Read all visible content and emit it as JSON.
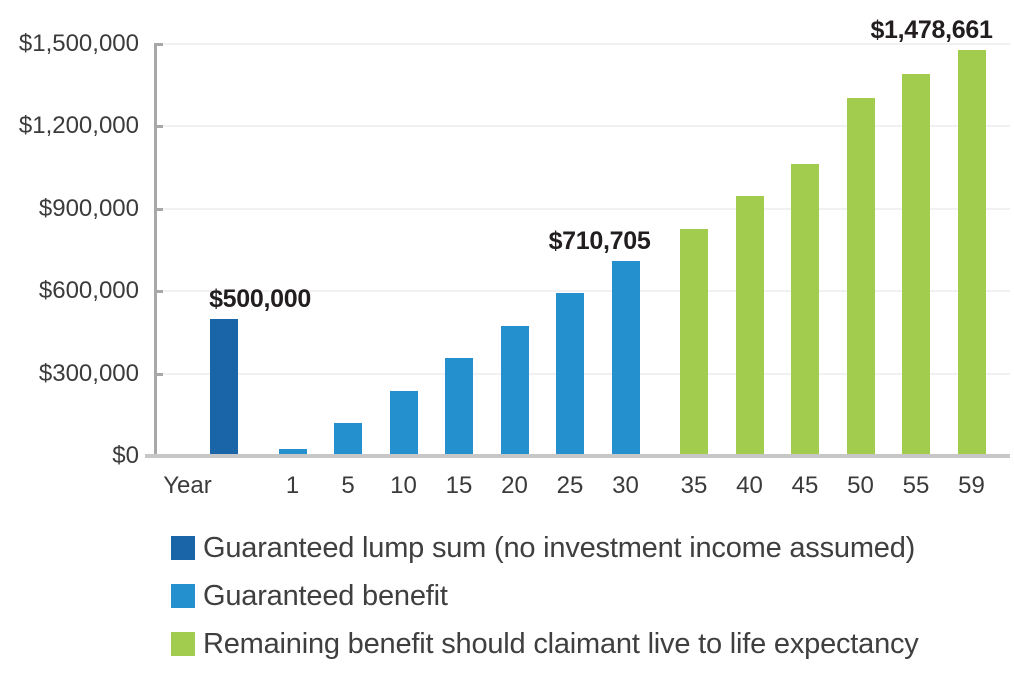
{
  "chart_data": {
    "type": "bar",
    "title": "",
    "xlabel": "Year",
    "ylabel": "",
    "ylim": [
      0,
      1500000
    ],
    "grid": true,
    "legend_position": "bottom-left",
    "y_ticks": [
      {
        "value": 0,
        "label": "$0"
      },
      {
        "value": 300000,
        "label": "$300,000"
      },
      {
        "value": 600000,
        "label": "$600,000"
      },
      {
        "value": 900000,
        "label": "$900,000"
      },
      {
        "value": 1200000,
        "label": "$1,200,000"
      },
      {
        "value": 1500000,
        "label": "$1,500,000"
      }
    ],
    "series": [
      {
        "name": "Guaranteed lump sum (no investment income assumed)",
        "color": "#1a65a8",
        "points": [
          {
            "x": "Year",
            "y": 500000,
            "label": "$500,000"
          }
        ]
      },
      {
        "name": "Guaranteed benefit",
        "color": "#2590ce",
        "points": [
          {
            "x": "1",
            "y": 23690,
            "label": null
          },
          {
            "x": "5",
            "y": 118451,
            "label": null
          },
          {
            "x": "10",
            "y": 236902,
            "label": null
          },
          {
            "x": "15",
            "y": 355353,
            "label": null
          },
          {
            "x": "20",
            "y": 473803,
            "label": null
          },
          {
            "x": "25",
            "y": 592254,
            "label": null
          },
          {
            "x": "30",
            "y": 710705,
            "label": "$710,705"
          }
        ]
      },
      {
        "name": "Remaining benefit should claimant live to life expectancy",
        "color": "#a2cc4e",
        "points": [
          {
            "x": "35",
            "y": 825000,
            "label": null
          },
          {
            "x": "40",
            "y": 947000,
            "label": null
          },
          {
            "x": "45",
            "y": 1064000,
            "label": null
          },
          {
            "x": "50",
            "y": 1305000,
            "label": null
          },
          {
            "x": "55",
            "y": 1390000,
            "label": null
          },
          {
            "x": "59",
            "y": 1478661,
            "label": "$1,478,661"
          }
        ]
      }
    ]
  },
  "legend": {
    "items": [
      {
        "label": "Guaranteed lump sum (no investment income assumed)",
        "color": "#1a65a8"
      },
      {
        "label": "Guaranteed benefit",
        "color": "#2590ce"
      },
      {
        "label": "Remaining benefit should claimant live to life expectancy",
        "color": "#a2cc4e"
      }
    ]
  }
}
